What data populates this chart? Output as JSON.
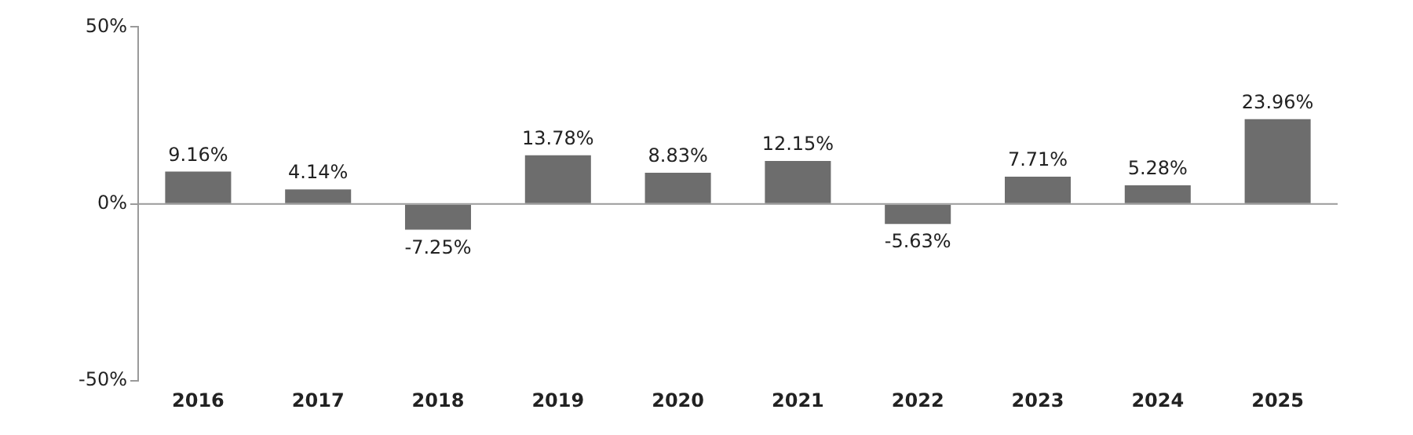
{
  "chart_data": {
    "type": "bar",
    "categories": [
      "2016",
      "2017",
      "2018",
      "2019",
      "2020",
      "2021",
      "2022",
      "2023",
      "2024",
      "2025"
    ],
    "values": [
      9.16,
      4.14,
      -7.25,
      13.78,
      8.83,
      12.15,
      -5.63,
      7.71,
      5.28,
      23.96
    ],
    "value_labels": [
      "9.16%",
      "4.14%",
      "-7.25%",
      "13.78%",
      "8.83%",
      "12.15%",
      "-5.63%",
      "7.71%",
      "5.28%",
      "23.96%"
    ],
    "color": "#6d6d6d",
    "ylim": [
      -50,
      50
    ],
    "yticks": [
      {
        "value": -50,
        "label": "-50%"
      },
      {
        "value": 0,
        "label": "0%"
      },
      {
        "value": 50,
        "label": "50%"
      }
    ],
    "ref_lines": [
      {
        "axis": "y",
        "value": 0,
        "color": "#9a9a9a"
      }
    ],
    "grid": false,
    "legend": false
  }
}
